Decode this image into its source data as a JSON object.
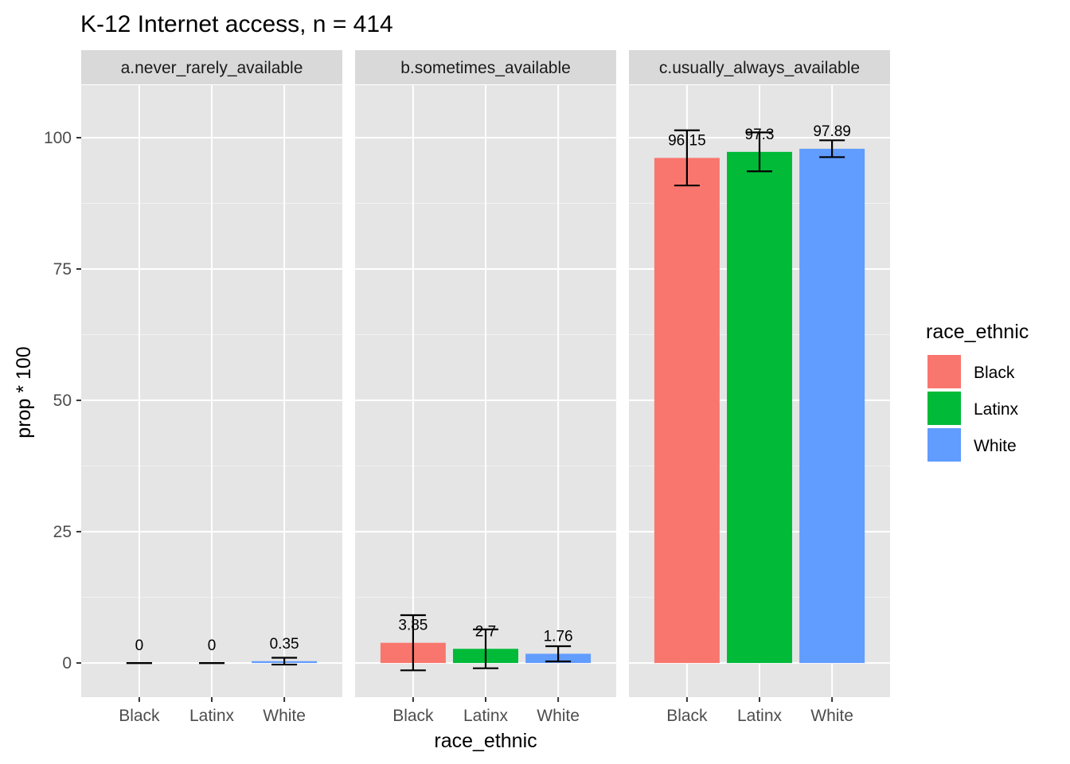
{
  "chart_data": {
    "type": "bar",
    "title": "K-12 Internet access, n = 414",
    "xlabel": "race_ethnic",
    "ylabel": "prop * 100",
    "ylim": [
      -6.5,
      110
    ],
    "yticks": [
      0,
      25,
      50,
      75,
      100
    ],
    "categories": [
      "Black",
      "Latinx",
      "White"
    ],
    "colors": {
      "Black": "#F8766D",
      "Latinx": "#00BA38",
      "White": "#619CFF"
    },
    "panel_background": "#E5E5E5",
    "strip_background": "#D9D9D9",
    "grid": true,
    "legend": {
      "title": "race_ethnic",
      "position": "right",
      "entries": [
        "Black",
        "Latinx",
        "White"
      ]
    },
    "panels": [
      {
        "label": "a.never_rarely_available",
        "values": [
          0,
          0,
          0.35
        ],
        "labels": [
          "0",
          "0",
          "0.35"
        ],
        "err_low": [
          0,
          0,
          -0.3
        ],
        "err_high": [
          0,
          0,
          1.0
        ]
      },
      {
        "label": "b.sometimes_available",
        "values": [
          3.85,
          2.7,
          1.76
        ],
        "labels": [
          "3.85",
          "2.7",
          "1.76"
        ],
        "err_low": [
          -1.4,
          -1.0,
          0.3
        ],
        "err_high": [
          9.1,
          6.4,
          3.2
        ]
      },
      {
        "label": "c.usually_always_available",
        "values": [
          96.15,
          97.3,
          97.89
        ],
        "labels": [
          "96.15",
          "97.3",
          "97.89"
        ],
        "err_low": [
          90.9,
          93.6,
          96.3
        ],
        "err_high": [
          101.4,
          101.0,
          99.5
        ]
      }
    ]
  }
}
